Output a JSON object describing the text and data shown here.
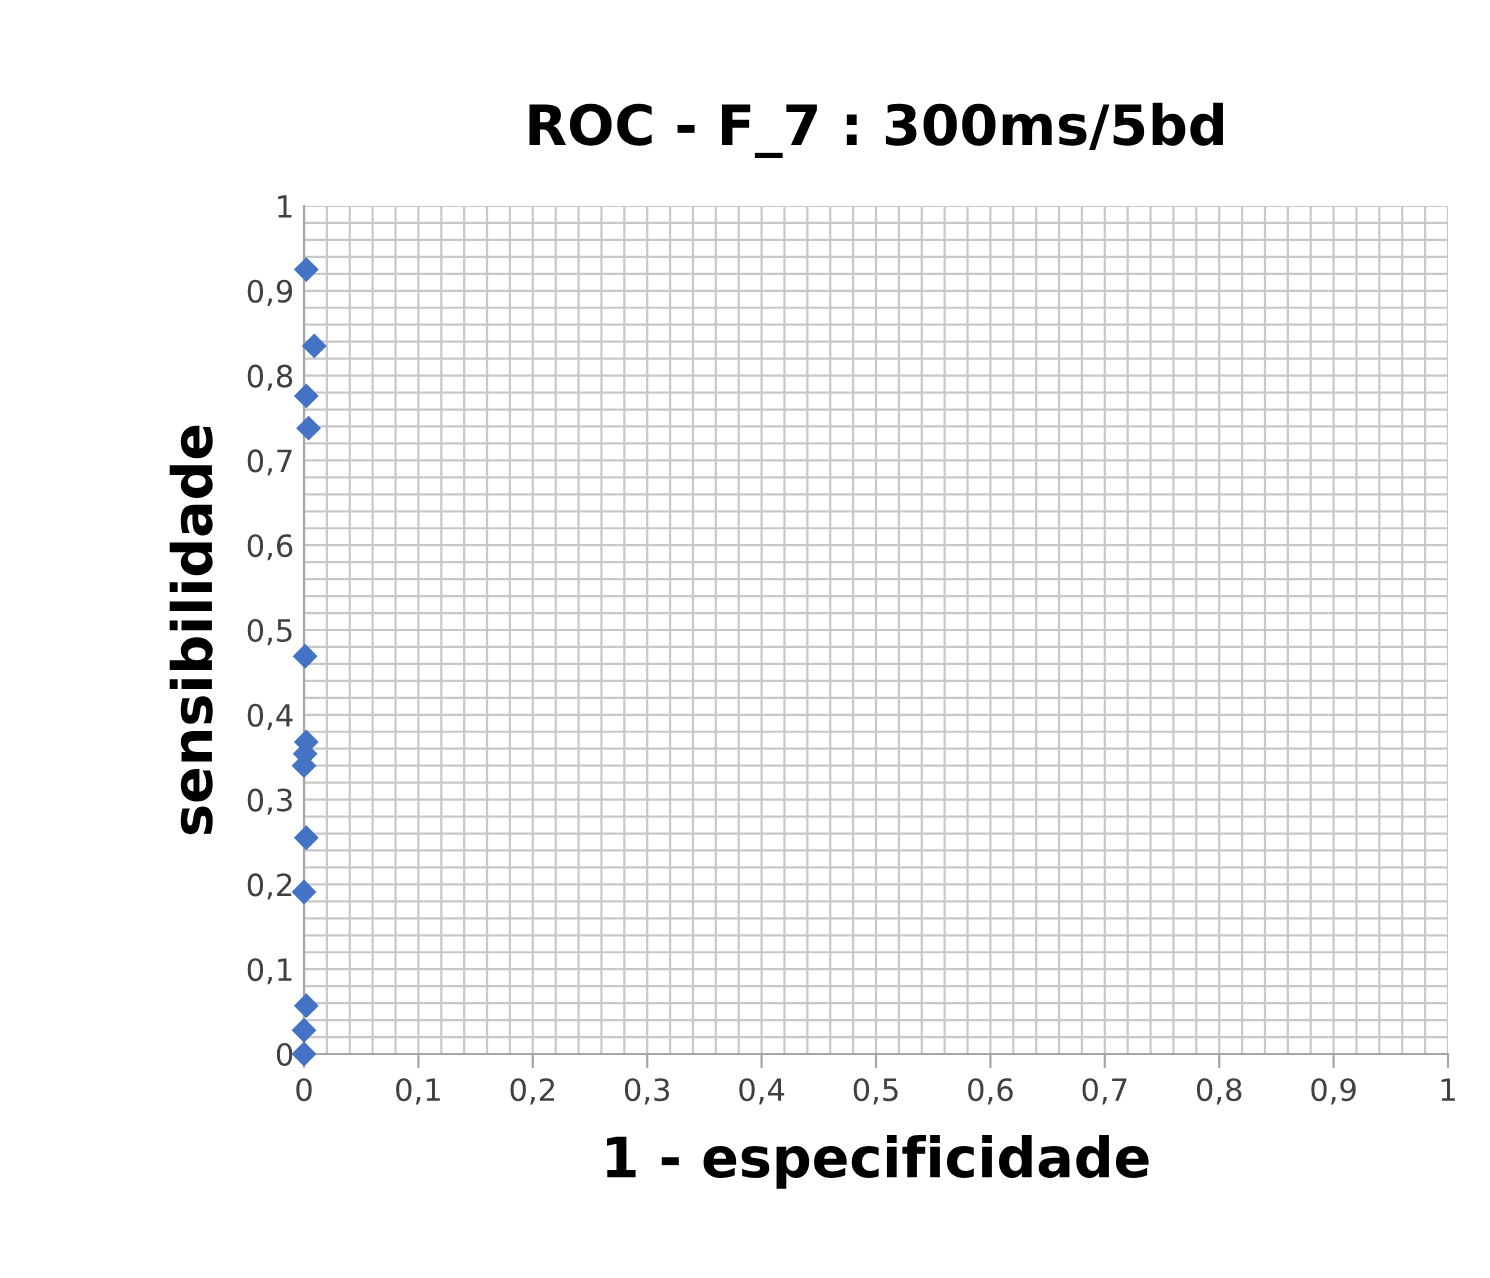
{
  "chart_data": {
    "type": "scatter",
    "title": "ROC - F_7 : 300ms/5bd",
    "xlabel": "1 - especificidade",
    "ylabel": "sensibilidade",
    "series": [
      {
        "color": "#4472c4",
        "x": [
          0.002,
          0.009,
          0.002,
          0.004,
          0.001,
          0.002,
          0.001,
          0.0,
          0.002,
          0.0,
          0.002,
          0.0,
          0.0
        ],
        "values": [
          0.925,
          0.835,
          0.776,
          0.738,
          0.469,
          0.368,
          0.354,
          0.34,
          0.255,
          0.191,
          0.057,
          0.028,
          0.0
        ]
      }
    ],
    "marker": "diamond",
    "grid": true,
    "legend": false,
    "xlim": [
      0,
      1
    ],
    "ylim": [
      0,
      1
    ],
    "xticks": [
      0,
      {
        "value": 0.1,
        "label": "0,1"
      },
      {
        "value": 0.2,
        "label": "0,2"
      },
      {
        "value": 0.3,
        "label": "0,3"
      },
      {
        "value": 0.4,
        "label": "0,4"
      },
      {
        "value": 0.5,
        "label": "0,5"
      },
      {
        "value": 0.6,
        "label": "0,6"
      },
      {
        "value": 0.7,
        "label": "0,7"
      },
      {
        "value": 0.8,
        "label": "0,8"
      },
      {
        "value": 0.9,
        "label": "0,9"
      },
      1
    ],
    "yticks": [
      0,
      {
        "value": 0.1,
        "label": "0,1"
      },
      {
        "value": 0.2,
        "label": "0,2"
      },
      {
        "value": 0.3,
        "label": "0,3"
      },
      {
        "value": 0.4,
        "label": "0,4"
      },
      {
        "value": 0.5,
        "label": "0,5"
      },
      {
        "value": 0.6,
        "label": "0,6"
      },
      {
        "value": 0.7,
        "label": "0,7"
      },
      {
        "value": 0.8,
        "label": "0,8"
      },
      {
        "value": 0.9,
        "label": "0,9"
      },
      1
    ]
  }
}
